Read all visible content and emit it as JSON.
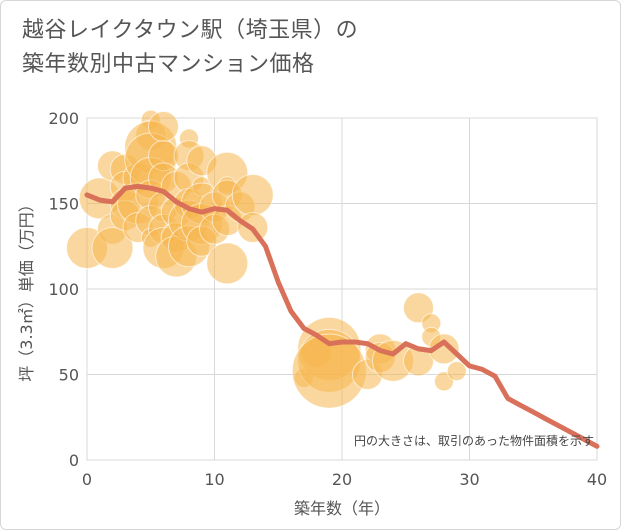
{
  "title_lines": [
    "越谷レイクタウン駅（埼玉県）の",
    "築年数別中古マンション価格"
  ],
  "colors": {
    "bubble": "#f5b74e",
    "line": "#d9705a",
    "grid": "#d8d8d8",
    "axis": "#555555"
  },
  "chart_data": {
    "type": "scatter",
    "xlabel": "築年数（年）",
    "ylabel": "坪（3.3㎡）単価（万円）",
    "xlim": [
      0,
      40
    ],
    "ylim": [
      0,
      200
    ],
    "xticks": [
      0,
      10,
      20,
      30,
      40
    ],
    "yticks": [
      0,
      50,
      100,
      150,
      200
    ],
    "grid": true,
    "annotation": "円の大きさは、取引のあった物件面積を示す",
    "bubbles": [
      {
        "x": 0,
        "y": 124,
        "size": 3
      },
      {
        "x": 1,
        "y": 153,
        "size": 3
      },
      {
        "x": 2,
        "y": 172,
        "size": 2
      },
      {
        "x": 2,
        "y": 135,
        "size": 2
      },
      {
        "x": 2,
        "y": 124,
        "size": 3
      },
      {
        "x": 3,
        "y": 170,
        "size": 2
      },
      {
        "x": 3,
        "y": 160,
        "size": 2
      },
      {
        "x": 3,
        "y": 150,
        "size": 2
      },
      {
        "x": 3,
        "y": 143,
        "size": 2
      },
      {
        "x": 4,
        "y": 165,
        "size": 2
      },
      {
        "x": 4,
        "y": 150,
        "size": 3
      },
      {
        "x": 4,
        "y": 136,
        "size": 2
      },
      {
        "x": 5,
        "y": 199,
        "size": 1
      },
      {
        "x": 5,
        "y": 190,
        "size": 2
      },
      {
        "x": 5,
        "y": 183,
        "size": 4
      },
      {
        "x": 5,
        "y": 176,
        "size": 4
      },
      {
        "x": 5,
        "y": 165,
        "size": 3
      },
      {
        "x": 5,
        "y": 155,
        "size": 2
      },
      {
        "x": 5,
        "y": 140,
        "size": 2
      },
      {
        "x": 5,
        "y": 130,
        "size": 1
      },
      {
        "x": 6,
        "y": 195,
        "size": 2
      },
      {
        "x": 6,
        "y": 178,
        "size": 2
      },
      {
        "x": 6,
        "y": 165,
        "size": 2
      },
      {
        "x": 6,
        "y": 148,
        "size": 2
      },
      {
        "x": 6,
        "y": 135,
        "size": 2
      },
      {
        "x": 6,
        "y": 124,
        "size": 3
      },
      {
        "x": 7,
        "y": 160,
        "size": 2
      },
      {
        "x": 7,
        "y": 145,
        "size": 2
      },
      {
        "x": 7,
        "y": 130,
        "size": 2
      },
      {
        "x": 7,
        "y": 119,
        "size": 3
      },
      {
        "x": 8,
        "y": 188,
        "size": 1
      },
      {
        "x": 8,
        "y": 178,
        "size": 2
      },
      {
        "x": 8,
        "y": 165,
        "size": 2
      },
      {
        "x": 8,
        "y": 150,
        "size": 2
      },
      {
        "x": 8,
        "y": 140,
        "size": 3
      },
      {
        "x": 8,
        "y": 125,
        "size": 3
      },
      {
        "x": 9,
        "y": 175,
        "size": 2
      },
      {
        "x": 9,
        "y": 160,
        "size": 1
      },
      {
        "x": 9,
        "y": 150,
        "size": 3
      },
      {
        "x": 9,
        "y": 138,
        "size": 3
      },
      {
        "x": 9,
        "y": 128,
        "size": 2
      },
      {
        "x": 10,
        "y": 148,
        "size": 2
      },
      {
        "x": 10,
        "y": 135,
        "size": 2
      },
      {
        "x": 11,
        "y": 168,
        "size": 3
      },
      {
        "x": 11,
        "y": 160,
        "size": 1
      },
      {
        "x": 11,
        "y": 155,
        "size": 2
      },
      {
        "x": 11,
        "y": 140,
        "size": 2
      },
      {
        "x": 11,
        "y": 115,
        "size": 3
      },
      {
        "x": 12,
        "y": 148,
        "size": 2
      },
      {
        "x": 13,
        "y": 155,
        "size": 3
      },
      {
        "x": 13,
        "y": 136,
        "size": 2
      },
      {
        "x": 17,
        "y": 48,
        "size": 1
      },
      {
        "x": 18,
        "y": 63,
        "size": 2
      },
      {
        "x": 19,
        "y": 65,
        "size": 5
      },
      {
        "x": 19,
        "y": 58,
        "size": 5
      },
      {
        "x": 19,
        "y": 52,
        "size": 6
      },
      {
        "x": 22,
        "y": 50,
        "size": 2
      },
      {
        "x": 23,
        "y": 65,
        "size": 2
      },
      {
        "x": 23,
        "y": 60,
        "size": 2
      },
      {
        "x": 24,
        "y": 58,
        "size": 3
      },
      {
        "x": 26,
        "y": 89,
        "size": 2
      },
      {
        "x": 26,
        "y": 58,
        "size": 2
      },
      {
        "x": 27,
        "y": 80,
        "size": 1
      },
      {
        "x": 27,
        "y": 72,
        "size": 1
      },
      {
        "x": 28,
        "y": 65,
        "size": 2
      },
      {
        "x": 28,
        "y": 46,
        "size": 1
      },
      {
        "x": 29,
        "y": 52,
        "size": 1
      }
    ],
    "series": [
      {
        "values": [
          [
            0,
            155
          ],
          [
            1,
            152
          ],
          [
            2,
            151
          ],
          [
            3,
            159
          ],
          [
            4,
            160
          ],
          [
            5,
            159
          ],
          [
            6,
            157
          ],
          [
            7,
            151
          ],
          [
            8,
            147
          ],
          [
            9,
            145
          ],
          [
            10,
            147
          ],
          [
            11,
            146
          ],
          [
            12,
            140
          ],
          [
            13,
            135
          ],
          [
            14,
            125
          ],
          [
            15,
            104
          ],
          [
            16,
            87
          ],
          [
            17,
            77
          ],
          [
            18,
            73
          ],
          [
            19,
            68
          ],
          [
            20,
            69
          ],
          [
            21,
            69
          ],
          [
            22,
            68
          ],
          [
            23,
            64
          ],
          [
            24,
            62
          ],
          [
            25,
            68
          ],
          [
            26,
            65
          ],
          [
            27,
            64
          ],
          [
            28,
            69
          ],
          [
            29,
            62
          ],
          [
            30,
            55
          ],
          [
            31,
            53
          ],
          [
            32,
            49
          ],
          [
            33,
            36
          ],
          [
            34,
            32
          ],
          [
            35,
            28
          ],
          [
            36,
            24
          ],
          [
            37,
            20
          ],
          [
            38,
            16
          ],
          [
            39,
            12
          ],
          [
            40,
            8
          ]
        ]
      }
    ]
  }
}
